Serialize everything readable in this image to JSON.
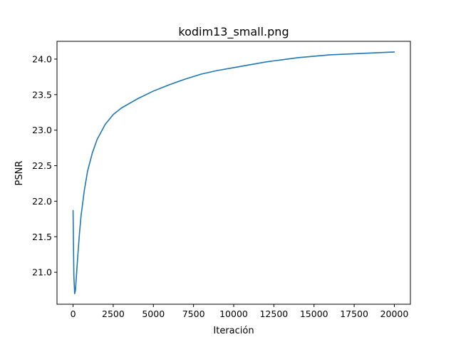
{
  "chart_data": {
    "type": "line",
    "title": "kodim13_small.png",
    "xlabel": "Iteración",
    "ylabel": "PSNR",
    "xlim": [
      -1000,
      21000
    ],
    "ylim": [
      20.55,
      24.25
    ],
    "xticks": [
      0,
      2500,
      5000,
      7500,
      10000,
      12500,
      15000,
      17500,
      20000
    ],
    "xtick_labels": [
      "0",
      "2500",
      "5000",
      "7500",
      "10000",
      "12500",
      "15000",
      "17500",
      "20000"
    ],
    "yticks": [
      21.0,
      21.5,
      22.0,
      22.5,
      23.0,
      23.5,
      24.0
    ],
    "ytick_labels": [
      "21.0",
      "21.5",
      "22.0",
      "22.5",
      "23.0",
      "23.5",
      "24.0"
    ],
    "grid": false,
    "series": [
      {
        "color": "#1f77b4",
        "x": [
          0,
          50,
          100,
          150,
          200,
          300,
          400,
          500,
          700,
          900,
          1200,
          1500,
          2000,
          2500,
          3000,
          4000,
          5000,
          6000,
          7000,
          8000,
          9000,
          10000,
          11000,
          12000,
          13000,
          14000,
          15000,
          16000,
          17000,
          18000,
          19000,
          20000
        ],
        "y": [
          21.87,
          20.95,
          20.7,
          20.75,
          20.92,
          21.25,
          21.55,
          21.8,
          22.15,
          22.42,
          22.68,
          22.87,
          23.08,
          23.22,
          23.31,
          23.44,
          23.55,
          23.64,
          23.72,
          23.79,
          23.84,
          23.88,
          23.92,
          23.96,
          23.99,
          24.02,
          24.04,
          24.06,
          24.07,
          24.08,
          24.09,
          24.1
        ]
      }
    ]
  }
}
